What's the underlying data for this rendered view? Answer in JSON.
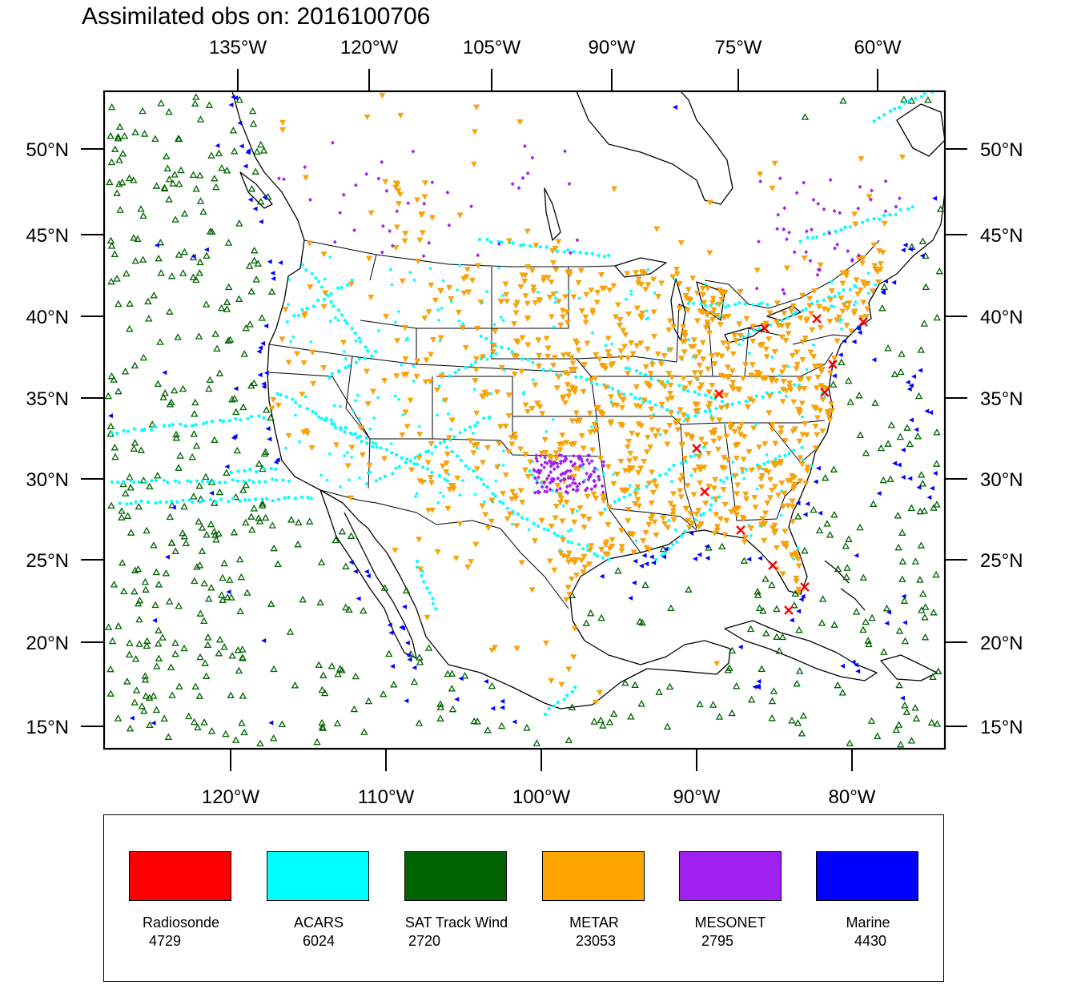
{
  "title": "Assimilated obs on: 2016100706",
  "map": {
    "top_axis_labels": [
      "135°W",
      "120°W",
      "105°W",
      "90°W",
      "75°W",
      "60°W"
    ],
    "bottom_axis_labels": [
      "120°W",
      "110°W",
      "100°W",
      "90°W",
      "80°W"
    ],
    "lat_labels": [
      "50°N",
      "45°N",
      "40°N",
      "35°N",
      "30°N",
      "25°N",
      "20°N",
      "15°N"
    ],
    "lon_range_deg": [
      -128,
      -74
    ],
    "lat_range_deg": [
      14,
      53
    ]
  },
  "legend": [
    {
      "name": "Radiosonde",
      "count": "4729",
      "color": "#ff0000"
    },
    {
      "name": "ACARS",
      "count": "6024",
      "color": "#00ffff"
    },
    {
      "name": "SAT Track Wind",
      "count": "2720",
      "color": "#006400"
    },
    {
      "name": "METAR",
      "count": "23053",
      "color": "#ffa500"
    },
    {
      "name": "MESONET",
      "count": "2795",
      "color": "#a020f0"
    },
    {
      "name": "Marine",
      "count": "4430",
      "color": "#0000ff"
    }
  ]
}
